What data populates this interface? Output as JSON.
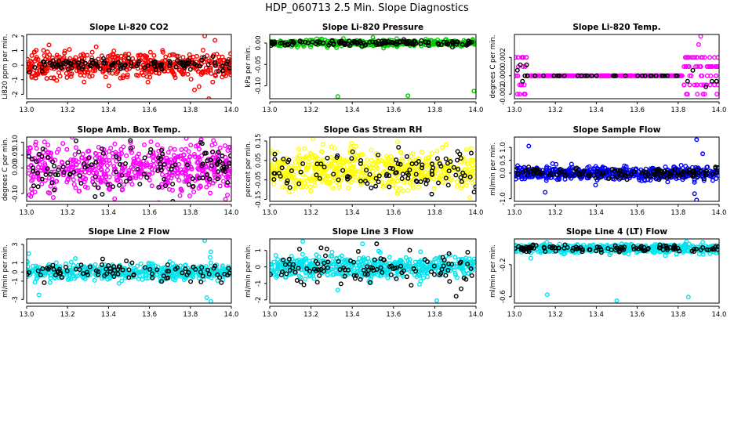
{
  "figure_title": "HDP_060713  2.5 Min. Slope Diagnostics",
  "colors": {
    "frame": "#000000",
    "overlay": "#000000"
  },
  "chart_data": [
    {
      "type": "scatter",
      "title": "Slope Li-820 CO2",
      "ylabel": "Li820 ppm per min.",
      "xlim": [
        13.0,
        14.0
      ],
      "ylim": [
        -2.3,
        2.1
      ],
      "x_ticks": [
        "13.0",
        "13.2",
        "13.4",
        "13.6",
        "13.8",
        "14.0"
      ],
      "y_ticks": [
        {
          "v": -2,
          "label": "-2"
        },
        {
          "v": -1,
          "label": "-1"
        },
        {
          "v": 0,
          "label": "0"
        },
        {
          "v": 1,
          "label": "1"
        },
        {
          "v": 2,
          "label": "2"
        }
      ],
      "color": "#ff0000",
      "gen": {
        "n": 520,
        "sd": 0.42,
        "base": 0,
        "ovn": 120,
        "ovsd": 0.22,
        "extra": [
          [
            13.87,
            2.0
          ],
          [
            13.89,
            -2.3
          ],
          [
            13.92,
            1.7
          ],
          [
            13.82,
            -1.7
          ]
        ]
      }
    },
    {
      "type": "scatter",
      "title": "Slope Li-820 Pressure",
      "ylabel": "kPa per min.",
      "xlim": [
        13.0,
        14.0
      ],
      "ylim": [
        -0.13,
        0.02
      ],
      "x_ticks": [
        "13.0",
        "13.2",
        "13.4",
        "13.6",
        "13.8",
        "14.0"
      ],
      "y_ticks": [
        {
          "v": 0.0,
          "label": "0.00"
        },
        {
          "v": -0.05,
          "label": "-0.05"
        },
        {
          "v": -0.1,
          "label": "-0.10"
        }
      ],
      "color": "#00cc00",
      "gen": {
        "n": 420,
        "sd": 0.004,
        "base": 0.0,
        "ovn": 140,
        "ovsd": 0.003,
        "extra": [
          [
            13.33,
            -0.125
          ],
          [
            13.67,
            -0.123
          ],
          [
            13.99,
            -0.112
          ],
          [
            13.5,
            0.013
          ]
        ]
      }
    },
    {
      "type": "scatter",
      "title": "Slope Li-820 Temp.",
      "ylabel": "degrees C per min.",
      "xlim": [
        13.0,
        14.0
      ],
      "ylim": [
        -0.0025,
        0.0045
      ],
      "x_ticks": [
        "13.0",
        "13.2",
        "13.4",
        "13.6",
        "13.8",
        "14.0"
      ],
      "y_ticks": [
        {
          "v": -0.002,
          "label": "-0.002"
        },
        {
          "v": 0.0,
          "label": "0.000"
        },
        {
          "v": 0.002,
          "label": "0.002"
        }
      ],
      "color": "#ff00ff",
      "gen": {
        "n": 420,
        "levels": [
          -0.002,
          -0.001,
          0,
          0.001,
          0.002
        ],
        "band": [
          [
            13.0,
            13.06
          ],
          [
            13.82,
            14.0
          ]
        ],
        "ovn": 40,
        "extra": [
          [
            13.91,
            0.0043
          ],
          [
            13.9,
            0.0034
          ]
        ]
      }
    },
    {
      "type": "scatter",
      "title": "Slope Amb. Box Temp.",
      "ylabel": "degrees C per min.",
      "xlim": [
        13.0,
        14.0
      ],
      "ylim": [
        -0.13,
        0.12
      ],
      "x_ticks": [
        "13.0",
        "13.2",
        "13.4",
        "13.6",
        "13.8",
        "14.0"
      ],
      "y_ticks": [
        {
          "v": -0.1,
          "label": "-0.10"
        },
        {
          "v": 0.0,
          "label": "0.00"
        },
        {
          "v": 0.05,
          "label": "0.05"
        },
        {
          "v": 0.1,
          "label": "0.10"
        }
      ],
      "color": "#ff00ff",
      "gen": {
        "n": 560,
        "sd": 0.045,
        "base": 0,
        "ovn": 120,
        "ovsd": 0.045,
        "extra": [
          [
            13.78,
            0.115
          ],
          [
            13.13,
            -0.115
          ],
          [
            13.43,
            -0.12
          ]
        ]
      }
    },
    {
      "type": "scatter",
      "title": "Slope Gas Stream RH",
      "ylabel": "percent per min.",
      "xlim": [
        13.0,
        14.0
      ],
      "ylim": [
        -0.16,
        0.17
      ],
      "x_ticks": [
        "13.0",
        "13.2",
        "13.4",
        "13.6",
        "13.8",
        "14.0"
      ],
      "y_ticks": [
        {
          "v": -0.15,
          "label": "-0.15"
        },
        {
          "v": -0.05,
          "label": "-0.05"
        },
        {
          "v": 0.05,
          "label": "0.05"
        },
        {
          "v": 0.15,
          "label": "0.15"
        }
      ],
      "color": "#ffff00",
      "gen": {
        "n": 560,
        "sd": 0.05,
        "base": 0,
        "ovn": 110,
        "ovsd": 0.05,
        "extra": [
          [
            13.62,
            0.145
          ],
          [
            13.97,
            -0.14
          ]
        ]
      }
    },
    {
      "type": "scatter",
      "title": "Slope Sample Flow",
      "ylabel": "ml/min per min.",
      "xlim": [
        13.0,
        14.0
      ],
      "ylim": [
        -1.1,
        1.4
      ],
      "x_ticks": [
        "13.0",
        "13.2",
        "13.4",
        "13.6",
        "13.8",
        "14.0"
      ],
      "y_ticks": [
        {
          "v": -1.0,
          "label": "-1.0"
        },
        {
          "v": 0.0,
          "label": "0.0"
        },
        {
          "v": 0.5,
          "label": "0.5"
        },
        {
          "v": 1.0,
          "label": "1.0"
        }
      ],
      "color": "#0000ff",
      "gen": {
        "n": 520,
        "sd": 0.13,
        "base": 0,
        "ovn": 130,
        "ovsd": 0.1,
        "extra": [
          [
            13.07,
            1.05
          ],
          [
            13.89,
            1.3
          ],
          [
            13.89,
            -1.05
          ],
          [
            13.15,
            -0.75
          ],
          [
            13.92,
            0.75
          ],
          [
            13.88,
            -0.8
          ]
        ]
      }
    },
    {
      "type": "scatter",
      "title": "Slope Line 2 Flow",
      "ylabel": "ml/min per min.",
      "xlim": [
        13.0,
        14.0
      ],
      "ylim": [
        -3.4,
        3.6
      ],
      "x_ticks": [
        "13.0",
        "13.2",
        "13.4",
        "13.6",
        "13.8",
        "14.0"
      ],
      "y_ticks": [
        {
          "v": -3,
          "label": "-3"
        },
        {
          "v": -1,
          "label": "-1"
        },
        {
          "v": 0,
          "label": "0"
        },
        {
          "v": 1,
          "label": "1"
        },
        {
          "v": 3,
          "label": "3"
        }
      ],
      "color": "#00e5ee",
      "gen": {
        "n": 520,
        "sd": 0.4,
        "base": 0,
        "ovn": 90,
        "ovsd": 0.5,
        "extra": [
          [
            13.87,
            3.4
          ],
          [
            13.9,
            2.2
          ],
          [
            13.88,
            -2.8
          ],
          [
            13.9,
            -3.2
          ],
          [
            13.06,
            -2.5
          ],
          [
            13.01,
            2.0
          ]
        ]
      }
    },
    {
      "type": "scatter",
      "title": "Slope Line 3 Flow",
      "ylabel": "ml/min per min.",
      "xlim": [
        13.0,
        14.0
      ],
      "ylim": [
        -2.2,
        1.7
      ],
      "x_ticks": [
        "13.0",
        "13.2",
        "13.4",
        "13.6",
        "13.8",
        "14.0"
      ],
      "y_ticks": [
        {
          "v": -2,
          "label": "-2"
        },
        {
          "v": -1,
          "label": "-1"
        },
        {
          "v": 0,
          "label": "0"
        },
        {
          "v": 1,
          "label": "1"
        }
      ],
      "color": "#00e5ee",
      "gen": {
        "n": 540,
        "sd": 0.32,
        "base": 0,
        "ovn": 110,
        "ovsd": 0.55,
        "extra": [
          [
            13.81,
            -2.05
          ],
          [
            13.16,
            1.55
          ],
          [
            13.45,
            1.4
          ],
          [
            13.33,
            -1.4
          ]
        ]
      }
    },
    {
      "type": "scatter",
      "title": "Slope Line 4 (LT) Flow",
      "ylabel": "ml/min per min.",
      "xlim": [
        13.0,
        14.0
      ],
      "ylim": [
        -0.68,
        0.12
      ],
      "x_ticks": [
        "13.0",
        "13.2",
        "13.4",
        "13.6",
        "13.8",
        "14.0"
      ],
      "y_ticks": [
        {
          "v": -0.2,
          "label": "-0.2"
        },
        {
          "v": -0.6,
          "label": "-0.6"
        }
      ],
      "color": "#00e5ee",
      "gen": {
        "n": 520,
        "sd": 0.028,
        "base": 0.0,
        "ovn": 120,
        "ovsd": 0.02,
        "extra": [
          [
            13.16,
            -0.575
          ],
          [
            13.5,
            -0.65
          ],
          [
            13.85,
            -0.605
          ],
          [
            13.08,
            -0.12
          ]
        ]
      }
    }
  ]
}
